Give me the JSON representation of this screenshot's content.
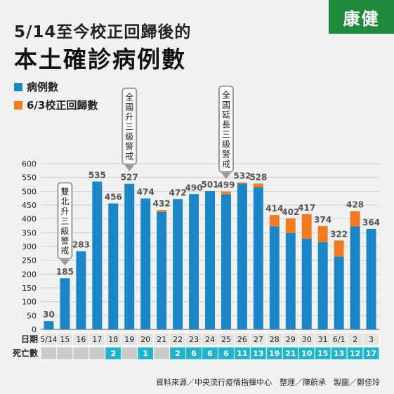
{
  "header": {
    "title_line1": "5/14至今校正回歸後的",
    "title_line2": "本土確診病例數",
    "logo_text": "康健"
  },
  "chart_data": {
    "type": "bar",
    "stacked": true,
    "categories": [
      "5/14",
      "15",
      "16",
      "17",
      "18",
      "19",
      "20",
      "21",
      "22",
      "23",
      "24",
      "25",
      "26",
      "27",
      "28",
      "29",
      "30",
      "31",
      "6/1",
      "2",
      "3"
    ],
    "series": [
      {
        "name": "病例數",
        "color": "#1a86c8",
        "values": [
          30,
          185,
          283,
          535,
          456,
          527,
          474,
          425,
          472,
          490,
          501,
          489,
          528,
          515,
          373,
          349,
          328,
          316,
          263,
          373,
          364
        ]
      },
      {
        "name": "6/3校正回歸數",
        "color": "#f47a20",
        "values": [
          0,
          0,
          0,
          0,
          0,
          0,
          0,
          7,
          0,
          0,
          0,
          10,
          4,
          13,
          41,
          53,
          89,
          58,
          59,
          55,
          0
        ]
      }
    ],
    "totals": [
      30,
      185,
      283,
      535,
      456,
      527,
      474,
      432,
      472,
      490,
      501,
      499,
      532,
      528,
      414,
      402,
      417,
      374,
      322,
      428,
      364
    ],
    "ylim": [
      0,
      600
    ],
    "yticks": [
      0,
      50,
      100,
      150,
      200,
      250,
      300,
      350,
      400,
      450,
      500,
      550,
      600
    ],
    "grid": true,
    "date_row_label": "日期",
    "death_row_label": "死亡數",
    "deaths": [
      "",
      "",
      "",
      "",
      "2",
      "",
      "1",
      "",
      "2",
      "6",
      "6",
      "6",
      "11",
      "13",
      "19",
      "21",
      "10",
      "15",
      "13",
      "12",
      "17"
    ],
    "annotations": [
      {
        "category": "15",
        "text": "雙北升三級警戒"
      },
      {
        "category": "19",
        "text": "全國升三級警戒"
      },
      {
        "category": "25",
        "text": "全國延長三級警戒"
      }
    ]
  },
  "footer": {
    "credit": "資料來源／中央流行疫情指揮中心　整理／陳蔚承　製圖／鄭佳玲"
  },
  "colors": {
    "cases": "#1a86c8",
    "backlog": "#f47a20",
    "death_cell": "#1fb3cc",
    "logo": "#1f8a3a"
  }
}
